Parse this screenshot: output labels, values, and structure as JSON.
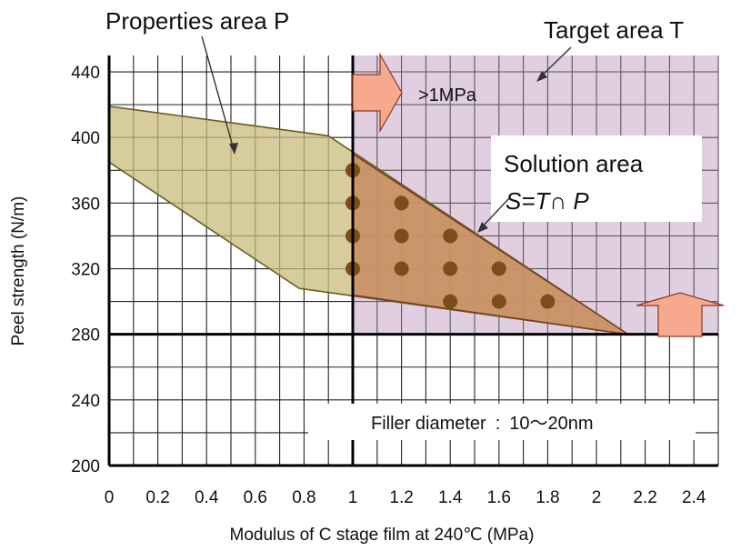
{
  "chart_data": {
    "type": "area",
    "xlabel": "Modulus of C stage film at 240℃ (MPa)",
    "ylabel": "Peel strength (N/m)",
    "xlim": [
      0,
      2.5
    ],
    "ylim": [
      200,
      450
    ],
    "x_ticks": [
      0,
      0.2,
      0.4,
      0.6,
      0.8,
      1,
      1.2,
      1.4,
      1.6,
      1.8,
      2,
      2.2,
      2.4
    ],
    "x_tick_labels": [
      "0",
      "0.2",
      "0.4",
      "0.6",
      "0.8",
      "1",
      "1.2",
      "1.4",
      "1.6",
      "1.8",
      "2",
      "2.2",
      "2.4"
    ],
    "y_ticks": [
      200,
      240,
      280,
      320,
      360,
      400,
      440
    ],
    "y_tick_labels": [
      "200",
      "240",
      "280",
      "320",
      "360",
      "400",
      "440"
    ],
    "grid": true,
    "target_area": {
      "label": "Target area T",
      "x_min": 1,
      "y_min": 280,
      "arrow_right_label": ">1MPa",
      "color": "#dcc6da"
    },
    "properties_area": {
      "label": "Properties area P",
      "polygon": [
        [
          0,
          419
        ],
        [
          0.9,
          401
        ],
        [
          2.13,
          280
        ],
        [
          0.78,
          308
        ],
        [
          0,
          385
        ]
      ],
      "color": "#c9bb7c"
    },
    "solution_area": {
      "label": "Solution area",
      "formula": "S=T∩ P",
      "polygon": [
        [
          1,
          390
        ],
        [
          2.13,
          280
        ],
        [
          1,
          304
        ]
      ],
      "color": "#c98a60"
    },
    "points": [
      [
        1,
        380
      ],
      [
        1,
        360
      ],
      [
        1,
        340
      ],
      [
        1,
        320
      ],
      [
        1.2,
        360
      ],
      [
        1.2,
        340
      ],
      [
        1.2,
        320
      ],
      [
        1.4,
        340
      ],
      [
        1.4,
        320
      ],
      [
        1.4,
        300
      ],
      [
        1.6,
        320
      ],
      [
        1.6,
        300
      ],
      [
        1.8,
        300
      ]
    ],
    "point_color": "#7a4e1a",
    "annotation": "Filler diameter : 10〜20nm"
  }
}
